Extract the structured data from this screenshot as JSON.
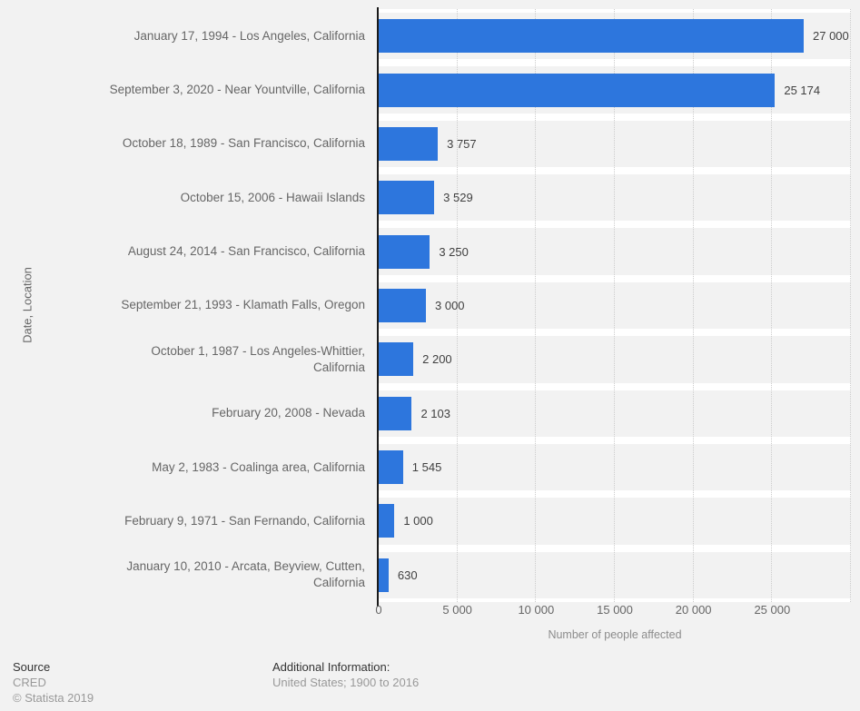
{
  "chart_data": {
    "type": "bar",
    "orientation": "horizontal",
    "xlabel": "Number of people affected",
    "ylabel": "Date, Location",
    "xlim": [
      0,
      30000
    ],
    "x_ticks": [
      "0",
      "5 000",
      "10 000",
      "15 000",
      "20 000",
      "25 000"
    ],
    "grid": "vertical dotted gridlines every 5000, legend none",
    "bar_color": "#2d76dd",
    "rows": [
      {
        "label": "January 17, 1994 - Los Angeles, California",
        "label_lines": [
          "January 17, 1994 - Los Angeles, California"
        ],
        "value": 27000,
        "value_label": "27 000"
      },
      {
        "label": "September 3, 2020 - Near Yountville, California",
        "label_lines": [
          "September 3, 2020 - Near Yountville, California"
        ],
        "value": 25174,
        "value_label": "25 174"
      },
      {
        "label": "October 18, 1989 - San Francisco, California",
        "label_lines": [
          "October 18, 1989 - San Francisco, California"
        ],
        "value": 3757,
        "value_label": "3 757"
      },
      {
        "label": "October 15, 2006 - Hawaii Islands",
        "label_lines": [
          "October 15, 2006 - Hawaii Islands"
        ],
        "value": 3529,
        "value_label": "3 529"
      },
      {
        "label": "August 24, 2014 - San Francisco, California",
        "label_lines": [
          "August 24, 2014 - San Francisco, California"
        ],
        "value": 3250,
        "value_label": "3 250"
      },
      {
        "label": "September 21, 1993 - Klamath Falls, Oregon",
        "label_lines": [
          "September 21, 1993 - Klamath Falls, Oregon"
        ],
        "value": 3000,
        "value_label": "3 000"
      },
      {
        "label": "October 1, 1987 - Los Angeles-Whittier, California",
        "label_lines": [
          "October 1, 1987 - Los Angeles-Whittier,",
          "California"
        ],
        "value": 2200,
        "value_label": "2 200"
      },
      {
        "label": "February 20, 2008 - Nevada",
        "label_lines": [
          "February 20, 2008 - Nevada"
        ],
        "value": 2103,
        "value_label": "2 103"
      },
      {
        "label": "May 2, 1983 - Coalinga area, California",
        "label_lines": [
          "May 2, 1983 - Coalinga area, California"
        ],
        "value": 1545,
        "value_label": "1 545"
      },
      {
        "label": "February 9, 1971 - San Fernando, California",
        "label_lines": [
          "February 9, 1971 - San Fernando, California"
        ],
        "value": 1000,
        "value_label": "1 000"
      },
      {
        "label": "January 10, 2010 - Arcata, Beyview, Cutten, California",
        "label_lines": [
          "January 10, 2010 - Arcata, Beyview, Cutten,",
          "California"
        ],
        "value": 630,
        "value_label": "630"
      }
    ]
  },
  "footer": {
    "source_heading": "Source",
    "source_name": "CRED",
    "copyright": "© Statista 2019",
    "additional_heading": "Additional Information:",
    "additional_text": "United States; 1900 to 2016"
  },
  "colors": {
    "bar": "#2d76dd",
    "page_background": "#f2f2f2",
    "plot_background": "#ffffff",
    "row_stripe": "#f2f2f2",
    "axis_line": "#1a1a1a",
    "gridline": "#cccccc",
    "label_text": "#666666",
    "value_text": "#404040",
    "muted_text": "#999999"
  }
}
